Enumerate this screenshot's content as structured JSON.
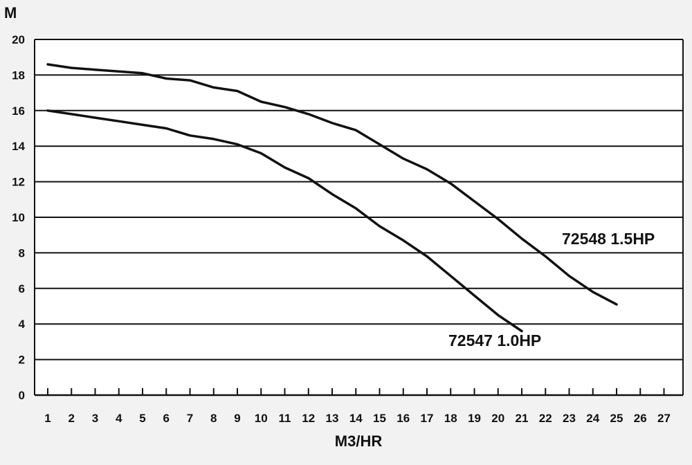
{
  "chart_data": {
    "type": "line",
    "title": "",
    "xlabel": "M3/HR",
    "ylabel": "M",
    "xlim": [
      1,
      27
    ],
    "ylim": [
      0,
      20
    ],
    "x_ticks": [
      "1",
      "2",
      "3",
      "4",
      "5",
      "6",
      "7",
      "8",
      "9",
      "10",
      "11",
      "12",
      "13",
      "14",
      "15",
      "16",
      "17",
      "18",
      "19",
      "20",
      "21",
      "22",
      "23",
      "24",
      "25",
      "26",
      "27"
    ],
    "y_ticks": [
      "0",
      "2",
      "4",
      "6",
      "8",
      "10",
      "12",
      "14",
      "16",
      "18",
      "20"
    ],
    "grid": "horizontal",
    "colors": {
      "background": "#f2f2f2",
      "plot_background": "#ffffff",
      "line": "#111111",
      "grid": "#111111"
    },
    "series": [
      {
        "label": "72548 1.5HP",
        "x": [
          1,
          2,
          3,
          4,
          5,
          6,
          7,
          8,
          9,
          10,
          11,
          12,
          13,
          14,
          15,
          16,
          17,
          18,
          19,
          20,
          21,
          22,
          23,
          24,
          25
        ],
        "y": [
          18.6,
          18.4,
          18.3,
          18.2,
          18.1,
          17.8,
          17.7,
          17.3,
          17.1,
          16.5,
          16.2,
          15.8,
          15.3,
          14.9,
          14.1,
          13.3,
          12.7,
          11.9,
          10.9,
          9.9,
          8.8,
          7.8,
          6.7,
          5.8,
          5.1
        ]
      },
      {
        "label": "72547 1.0HP",
        "x": [
          1,
          2,
          3,
          4,
          5,
          6,
          7,
          8,
          9,
          10,
          11,
          12,
          13,
          14,
          15,
          16,
          17,
          18,
          19,
          20,
          21
        ],
        "y": [
          16.0,
          15.8,
          15.6,
          15.4,
          15.2,
          15.0,
          14.6,
          14.4,
          14.1,
          13.6,
          12.8,
          12.2,
          11.3,
          10.5,
          9.5,
          8.7,
          7.8,
          6.7,
          5.6,
          4.5,
          3.6
        ]
      }
    ]
  }
}
